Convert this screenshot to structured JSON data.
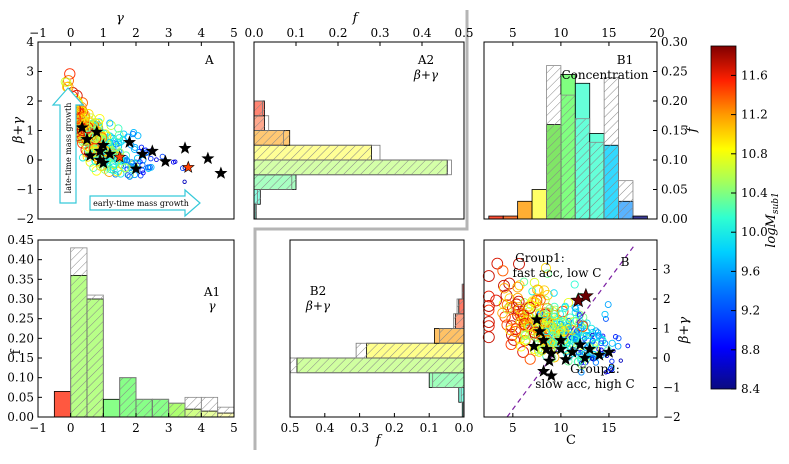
{
  "colorbar": {
    "label": "logM_sub1",
    "label_main": "logM",
    "label_sub": "sub1",
    "ticks": [
      "11.6",
      "11.2",
      "10.8",
      "10.4",
      "10.0",
      "9.6",
      "9.2",
      "8.8",
      "8.4"
    ],
    "range": [
      8.4,
      11.9
    ],
    "colors": [
      "#0b0b80",
      "#0000ff",
      "#0080ff",
      "#00d0ff",
      "#30ffd0",
      "#a0ff60",
      "#ffff00",
      "#ff9a00",
      "#ff2000",
      "#800000"
    ]
  },
  "chart_data": [
    {
      "id": "A",
      "type": "scatter",
      "label": "A",
      "xlabel": "",
      "ylabel": "β+γ",
      "top_xlabel": "γ",
      "xlim": [
        -1,
        5
      ],
      "ylim": [
        -2,
        4
      ],
      "xticks": [
        "−1",
        "0",
        "1",
        "2",
        "3",
        "4",
        "5"
      ],
      "yticks": [
        "4",
        "3",
        "2",
        "1",
        "0",
        "−1",
        "−2"
      ],
      "annotations": [
        "late-time mass growth",
        "early-time mass growth"
      ],
      "stars": [
        [
          0.05,
          2.0
        ],
        [
          0.35,
          1.1
        ],
        [
          0.5,
          0.7
        ],
        [
          0.8,
          0.95
        ],
        [
          1.0,
          0.5
        ],
        [
          1.2,
          0.2
        ],
        [
          1.5,
          0.1
        ],
        [
          0.9,
          0.0
        ],
        [
          1.8,
          0.6
        ],
        [
          2.2,
          0.2
        ],
        [
          2.5,
          0.3
        ],
        [
          2.9,
          -0.05
        ],
        [
          3.5,
          0.4
        ],
        [
          3.6,
          -0.25
        ],
        [
          4.2,
          0.05
        ],
        [
          4.6,
          -0.45
        ],
        [
          2.0,
          -0.3
        ],
        [
          1.0,
          -0.1
        ],
        [
          0.6,
          0.15
        ],
        [
          0.9,
          0.3
        ]
      ]
    },
    {
      "id": "A2",
      "type": "bar",
      "orientation": "horizontal",
      "label": "A2",
      "sublabel": "β+γ",
      "xlabel": "",
      "top_xlabel": "f",
      "xlim": [
        0,
        0.5
      ],
      "ylim": [
        -2,
        4
      ],
      "xticks": [
        "0.0",
        "0.1",
        "0.2",
        "0.3",
        "0.4",
        "0.5"
      ],
      "bins": [
        [
          -2,
          -1.5
        ],
        [
          -1.5,
          -1
        ],
        [
          -1,
          -0.5
        ],
        [
          -0.5,
          0
        ],
        [
          0,
          0.5
        ],
        [
          0.5,
          1
        ],
        [
          1,
          1.5
        ],
        [
          1.5,
          2
        ],
        [
          2,
          2.5
        ],
        [
          2.5,
          3
        ],
        [
          3,
          3.5
        ],
        [
          3.5,
          4
        ]
      ],
      "values": [
        0.005,
        0.015,
        0.1,
        0.46,
        0.28,
        0.085,
        0.025,
        0.025,
        0,
        0,
        0,
        0
      ],
      "outline_values": [
        0.002,
        0.008,
        0.09,
        0.47,
        0.3,
        0.07,
        0.035,
        0.02,
        0,
        0,
        0,
        0
      ]
    },
    {
      "id": "B1",
      "type": "bar",
      "label": "B1",
      "sublabel": "Concentration",
      "xlabel": "",
      "ylabel": "f",
      "xlim": [
        2,
        20
      ],
      "ylim": [
        0,
        0.3
      ],
      "xticks": [
        "5",
        "10",
        "15",
        "20"
      ],
      "yticks": [
        "0.30",
        "0.25",
        "0.20",
        "0.15",
        "0.10",
        "0.05",
        "0.00"
      ],
      "bins": [
        [
          2.5,
          4
        ],
        [
          4,
          5.5
        ],
        [
          5.5,
          7
        ],
        [
          7,
          8.5
        ],
        [
          8.5,
          10
        ],
        [
          10,
          11.5
        ],
        [
          11.5,
          13
        ],
        [
          13,
          14.5
        ],
        [
          14.5,
          16
        ],
        [
          16,
          17.5
        ],
        [
          17.5,
          19
        ]
      ],
      "values": [
        0.005,
        0.005,
        0.03,
        0.05,
        0.16,
        0.245,
        0.23,
        0.145,
        0.125,
        0.03,
        0.005
      ],
      "outline_values": [
        0,
        0,
        0,
        0,
        0.26,
        0.21,
        0.17,
        0.13,
        0.24,
        0.065,
        0
      ]
    },
    {
      "id": "A1",
      "type": "bar",
      "label": "A1",
      "sublabel": "γ",
      "xlabel": "",
      "ylabel": "f",
      "xlim": [
        -1,
        5
      ],
      "ylim": [
        0,
        0.45
      ],
      "xticks": [
        "−1",
        "0",
        "1",
        "2",
        "3",
        "4",
        "5"
      ],
      "yticks": [
        "0.45",
        "0.40",
        "0.35",
        "0.30",
        "0.25",
        "0.20",
        "0.15",
        "0.10",
        "0.05",
        "0.00"
      ],
      "bins": [
        [
          -0.5,
          0
        ],
        [
          0,
          0.5
        ],
        [
          0.5,
          1
        ],
        [
          1,
          1.5
        ],
        [
          1.5,
          2
        ],
        [
          2,
          2.5
        ],
        [
          2.5,
          3
        ],
        [
          3,
          3.5
        ],
        [
          3.5,
          4
        ],
        [
          4,
          4.5
        ],
        [
          4.5,
          5
        ]
      ],
      "values": [
        0.065,
        0.36,
        0.3,
        0.045,
        0.1,
        0.045,
        0.045,
        0.035,
        0.02,
        0.015,
        0.01
      ],
      "outline_values": [
        0,
        0.43,
        0.31,
        0,
        0.1,
        0.045,
        0.045,
        0.035,
        0.05,
        0.05,
        0.025
      ]
    },
    {
      "id": "B2",
      "type": "bar",
      "orientation": "horizontal-reversed",
      "label": "B2",
      "sublabel": "β+γ",
      "xlabel": "f",
      "xlim": [
        0.5,
        0.0
      ],
      "ylim": [
        -2,
        4
      ],
      "xticks": [
        "0.5",
        "0.4",
        "0.3",
        "0.2",
        "0.1",
        "0.0"
      ],
      "bins": [
        [
          -2,
          -1.5
        ],
        [
          -1.5,
          -1
        ],
        [
          -1,
          -0.5
        ],
        [
          -0.5,
          0
        ],
        [
          0,
          0.5
        ],
        [
          0.5,
          1
        ],
        [
          1,
          1.5
        ],
        [
          1.5,
          2
        ],
        [
          2,
          2.5
        ],
        [
          2.5,
          3
        ],
        [
          3,
          3.5
        ],
        [
          3.5,
          4
        ]
      ],
      "values": [
        0.005,
        0.015,
        0.1,
        0.48,
        0.28,
        0.085,
        0.025,
        0.015,
        0.005,
        0,
        0,
        0
      ],
      "outline_values": [
        0.002,
        0.008,
        0.09,
        0.5,
        0.31,
        0.07,
        0.03,
        0.02,
        0.005,
        0,
        0,
        0
      ]
    },
    {
      "id": "B",
      "type": "scatter",
      "label": "B",
      "xlabel": "C",
      "ylabel": "β+γ",
      "xlim": [
        2,
        20
      ],
      "ylim": [
        -2,
        4
      ],
      "xticks": [
        "5",
        "10",
        "15"
      ],
      "yticks": [
        "3",
        "2",
        "1",
        "0",
        "−1",
        "−2"
      ],
      "annotations": [
        "Group1:",
        "fast acc, low C",
        "Group2:",
        "slow acc, high C"
      ],
      "stars": [
        [
          7.5,
          1.3
        ],
        [
          7.8,
          0.9
        ],
        [
          8.2,
          0.6
        ],
        [
          8.5,
          0.3
        ],
        [
          9.0,
          0.15
        ],
        [
          7.2,
          0.4
        ],
        [
          8.8,
          -0.1
        ],
        [
          10.0,
          0.3
        ],
        [
          10.5,
          -0.05
        ],
        [
          11.2,
          0.2
        ],
        [
          12.0,
          0.45
        ],
        [
          13.0,
          0.3
        ],
        [
          12.5,
          0.0
        ],
        [
          14.0,
          0.1
        ],
        [
          15.0,
          0.2
        ],
        [
          11.8,
          1.95
        ],
        [
          12.6,
          2.1
        ],
        [
          9.0,
          -0.6
        ],
        [
          8.2,
          -0.45
        ],
        [
          10.0,
          0.6
        ]
      ]
    }
  ]
}
